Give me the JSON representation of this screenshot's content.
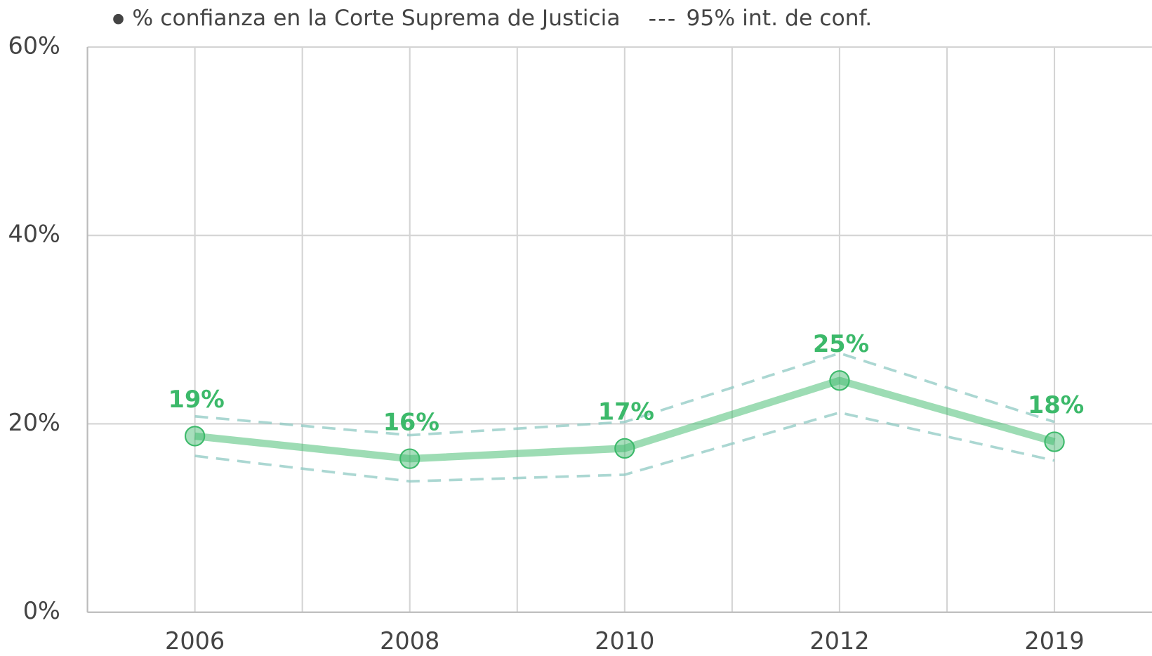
{
  "chart_data": {
    "type": "line",
    "categories": [
      "2006",
      "2008",
      "2010",
      "2012",
      "2019"
    ],
    "series": [
      {
        "name": "% confianza en la Corte Suprema de Justicia",
        "color": "#3cb96a",
        "values": [
          18.7,
          16.3,
          17.4,
          24.6,
          18.1
        ],
        "value_labels": [
          "19%",
          "16%",
          "17%",
          "25%",
          "18%"
        ]
      }
    ],
    "ci": {
      "name": "95% int. de conf.",
      "color": "#8fcac3",
      "upper": [
        20.8,
        18.8,
        20.2,
        27.5,
        20.2
      ],
      "lower": [
        16.6,
        13.9,
        14.6,
        21.2,
        16.1
      ]
    },
    "ylim": [
      0,
      60
    ],
    "yticks": [
      {
        "value": 0,
        "label": "0%"
      },
      {
        "value": 20,
        "label": "20%"
      },
      {
        "value": 40,
        "label": "40%"
      },
      {
        "value": 60,
        "label": "60%"
      }
    ],
    "grid": true
  }
}
